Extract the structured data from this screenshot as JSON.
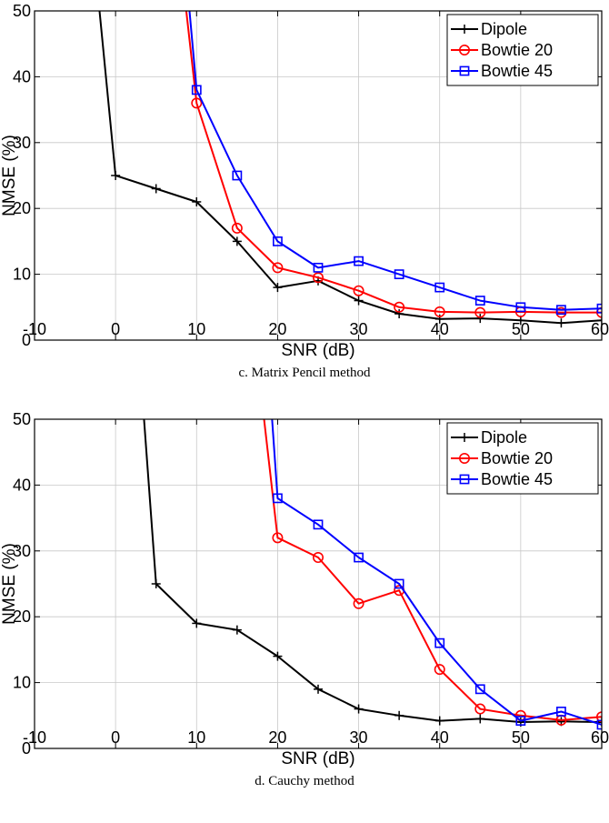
{
  "chart_data": [
    {
      "type": "line",
      "caption": "c.  Matrix Pencil method",
      "xlabel": "SNR (dB)",
      "ylabel": "NMSE (%)",
      "xlim": [
        -10,
        60
      ],
      "ylim": [
        0,
        50
      ],
      "xticks": [
        -10,
        0,
        10,
        20,
        30,
        40,
        50,
        60
      ],
      "yticks": [
        0,
        10,
        20,
        30,
        40,
        50
      ],
      "grid": true,
      "legend_position": "top-right",
      "series": [
        {
          "name": "Dipole",
          "color": "#000000",
          "marker": "plus",
          "x": [
            0,
            5,
            10,
            15,
            20,
            25,
            30,
            35,
            40,
            45,
            50,
            55,
            60
          ],
          "y": [
            25,
            23,
            21,
            15,
            8,
            9,
            6,
            4,
            3.2,
            3.3,
            3,
            2.6,
            3
          ],
          "entry": {
            "x": -2,
            "y": 50
          }
        },
        {
          "name": "Bowtie 20",
          "color": "#ff0000",
          "marker": "circle",
          "x": [
            10,
            15,
            20,
            25,
            30,
            35,
            40,
            45,
            50,
            55,
            60
          ],
          "y": [
            36,
            17,
            11,
            9.5,
            7.5,
            5,
            4.3,
            4.2,
            4.3,
            4.2,
            4.2
          ],
          "entry": {
            "x": 8.7,
            "y": 50
          }
        },
        {
          "name": "Bowtie 45",
          "color": "#0000ff",
          "marker": "square",
          "x": [
            10,
            15,
            20,
            25,
            30,
            35,
            40,
            45,
            50,
            55,
            60
          ],
          "y": [
            38,
            25,
            15,
            11,
            12,
            10,
            8,
            6,
            5,
            4.6,
            4.8
          ],
          "entry": {
            "x": 9.1,
            "y": 50
          }
        }
      ]
    },
    {
      "type": "line",
      "caption": "d.  Cauchy method",
      "xlabel": "SNR (dB)",
      "ylabel": "NMSE (%)",
      "xlim": [
        -10,
        60
      ],
      "ylim": [
        0,
        50
      ],
      "xticks": [
        -10,
        0,
        10,
        20,
        30,
        40,
        50,
        60
      ],
      "yticks": [
        0,
        10,
        20,
        30,
        40,
        50
      ],
      "grid": true,
      "legend_position": "top-right",
      "series": [
        {
          "name": "Dipole",
          "color": "#000000",
          "marker": "plus",
          "x": [
            5,
            10,
            15,
            20,
            25,
            30,
            35,
            40,
            45,
            50,
            55,
            60
          ],
          "y": [
            25,
            19,
            18,
            14,
            9,
            6,
            5,
            4.2,
            4.5,
            4,
            4.1,
            4
          ],
          "entry": {
            "x": 3.5,
            "y": 50
          }
        },
        {
          "name": "Bowtie 20",
          "color": "#ff0000",
          "marker": "circle",
          "x": [
            20,
            25,
            30,
            35,
            40,
            45,
            50,
            55,
            60
          ],
          "y": [
            32,
            29,
            22,
            24,
            12,
            6,
            5,
            4.3,
            4.8
          ],
          "entry": {
            "x": 18.3,
            "y": 50
          }
        },
        {
          "name": "Bowtie 45",
          "color": "#0000ff",
          "marker": "square",
          "x": [
            20,
            25,
            30,
            35,
            40,
            45,
            50,
            55,
            60
          ],
          "y": [
            38,
            34,
            29,
            25,
            16,
            9,
            4.2,
            5.6,
            3.6
          ],
          "entry": {
            "x": 19.3,
            "y": 50
          }
        }
      ]
    }
  ]
}
